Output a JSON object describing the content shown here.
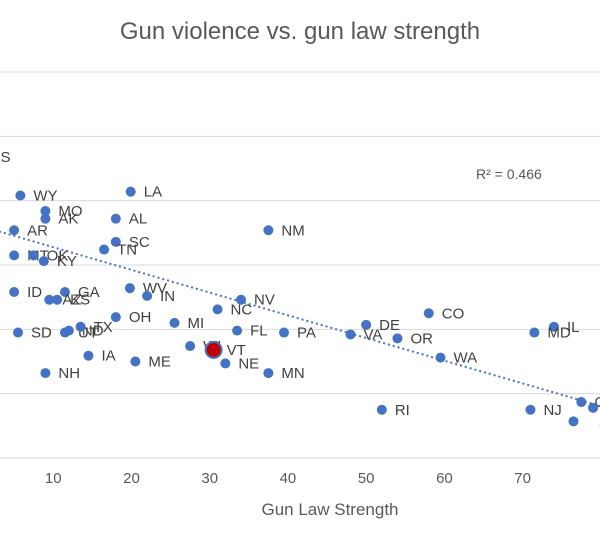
{
  "chart_data": {
    "type": "scatter",
    "title": "Gun violence vs. gun law strength",
    "xlabel": "Gun Law Strength",
    "ylabel": "",
    "xlim": [
      0,
      85
    ],
    "x_ticks": [
      10,
      20,
      30,
      40,
      50,
      60,
      70
    ],
    "y_gridlines": 6,
    "grid": "horizontal",
    "legend": "none",
    "r_squared_label": "R² = 0.466",
    "marker_color": "#4472C4",
    "highlight_color": "#C00000",
    "trendline": {
      "style": "dotted",
      "color": "#4472C4",
      "x_start": 0,
      "y_start": 0.395,
      "x_end": 85,
      "y_end": 0.895
    },
    "points": [
      {
        "label": "MS",
        "x": 0.0,
        "y": 0.22
      },
      {
        "label": "WY",
        "x": 5.8,
        "y": 0.32
      },
      {
        "label": "LA",
        "x": 19.9,
        "y": 0.31
      },
      {
        "label": "MO",
        "x": 9.0,
        "y": 0.36
      },
      {
        "label": "AK",
        "x": 9.0,
        "y": 0.38
      },
      {
        "label": "AL",
        "x": 18.0,
        "y": 0.38
      },
      {
        "label": "AR",
        "x": 5.0,
        "y": 0.41
      },
      {
        "label": "SC",
        "x": 18.0,
        "y": 0.44
      },
      {
        "label": "TN",
        "x": 16.5,
        "y": 0.46
      },
      {
        "label": "MT",
        "x": 5.0,
        "y": 0.475
      },
      {
        "label": "OK",
        "x": 7.5,
        "y": 0.475
      },
      {
        "label": "KY",
        "x": 8.8,
        "y": 0.49
      },
      {
        "label": "NM",
        "x": 37.5,
        "y": 0.41
      },
      {
        "label": "ID",
        "x": 5.0,
        "y": 0.57
      },
      {
        "label": "WV",
        "x": 19.8,
        "y": 0.56
      },
      {
        "label": "IN",
        "x": 22.0,
        "y": 0.58
      },
      {
        "label": "GA",
        "x": 11.5,
        "y": 0.57
      },
      {
        "label": "AZ",
        "x": 9.5,
        "y": 0.59
      },
      {
        "label": "KS",
        "x": 10.5,
        "y": 0.59
      },
      {
        "label": "NV",
        "x": 34.0,
        "y": 0.59
      },
      {
        "label": "NC",
        "x": 31.0,
        "y": 0.615
      },
      {
        "label": "OH",
        "x": 18.0,
        "y": 0.635
      },
      {
        "label": "CO",
        "x": 58.0,
        "y": 0.625
      },
      {
        "label": "MI",
        "x": 25.5,
        "y": 0.65
      },
      {
        "label": "DE",
        "x": 50.0,
        "y": 0.655
      },
      {
        "label": "IL",
        "x": 74.0,
        "y": 0.66
      },
      {
        "label": "SD",
        "x": 5.5,
        "y": 0.675
      },
      {
        "label": "UT",
        "x": 11.5,
        "y": 0.675
      },
      {
        "label": "ND",
        "x": 12.0,
        "y": 0.67
      },
      {
        "label": "TX",
        "x": 13.5,
        "y": 0.66
      },
      {
        "label": "FL",
        "x": 33.5,
        "y": 0.67
      },
      {
        "label": "PA",
        "x": 39.5,
        "y": 0.675
      },
      {
        "label": "VA",
        "x": 48.0,
        "y": 0.68
      },
      {
        "label": "MD",
        "x": 71.5,
        "y": 0.675
      },
      {
        "label": "OR",
        "x": 54.0,
        "y": 0.69
      },
      {
        "label": "WI",
        "x": 27.5,
        "y": 0.71
      },
      {
        "label": "VT",
        "x": 30.5,
        "y": 0.72,
        "highlight": true
      },
      {
        "label": "IA",
        "x": 14.5,
        "y": 0.735
      },
      {
        "label": "WA",
        "x": 59.5,
        "y": 0.74
      },
      {
        "label": "ME",
        "x": 20.5,
        "y": 0.75
      },
      {
        "label": "NE",
        "x": 32.0,
        "y": 0.755
      },
      {
        "label": "NH",
        "x": 9.0,
        "y": 0.78
      },
      {
        "label": "MN",
        "x": 37.5,
        "y": 0.78
      },
      {
        "label": "RI",
        "x": 52.0,
        "y": 0.875
      },
      {
        "label": "NJ",
        "x": 71.0,
        "y": 0.875
      },
      {
        "label": "CT",
        "x": 77.5,
        "y": 0.855
      },
      {
        "label": "",
        "x": 79.0,
        "y": 0.87
      },
      {
        "label": "",
        "x": 76.5,
        "y": 0.905
      },
      {
        "label": "",
        "x": 80.5,
        "y": 0.915
      }
    ]
  }
}
